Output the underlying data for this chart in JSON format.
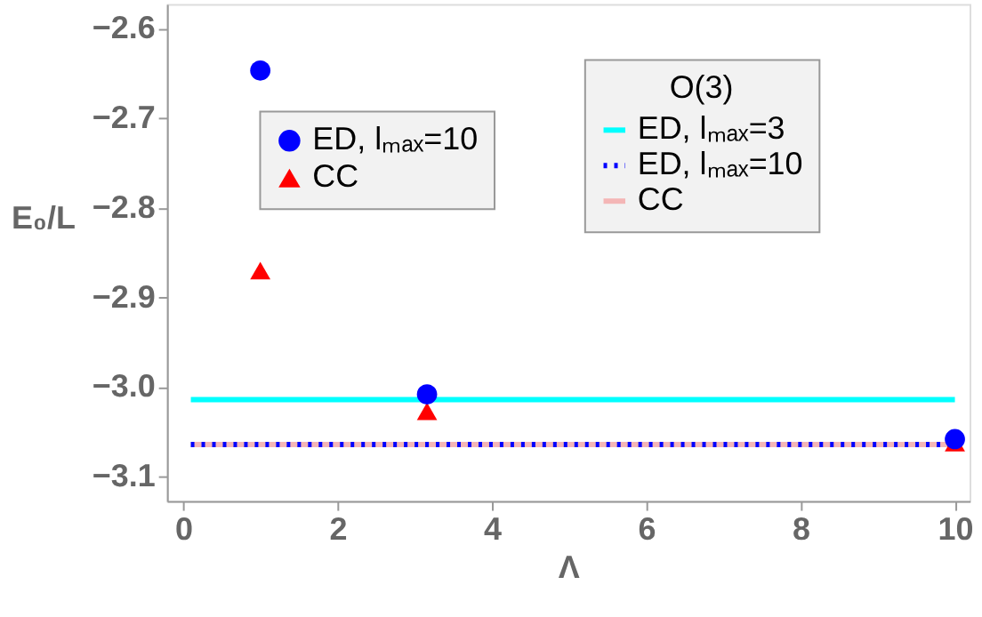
{
  "chart_data": {
    "type": "scatter",
    "xlabel": "Λ",
    "ylabel": "E₀/L",
    "xlim": [
      -0.21,
      10.19
    ],
    "ylim": [
      -3.127,
      -2.573
    ],
    "xticks": [
      0,
      2,
      4,
      6,
      8,
      10
    ],
    "yticks": [
      -3.1,
      {
        "value": -3.0,
        "label": "−3.0"
      },
      -2.9,
      -2.8,
      -2.7,
      -2.6
    ],
    "grid": false,
    "legend": "top right",
    "legend_title": "O(3)",
    "series": [
      {
        "name": "ED, lₘₐₓ=3",
        "type": "line",
        "color": "#00ffff",
        "line_style": "solid",
        "x": [
          0.1,
          10
        ],
        "values": [
          -3.014,
          -3.014
        ]
      },
      {
        "name": "ED, lₘₐₓ=10",
        "type": "line",
        "color": "#0000ff",
        "line_style": "dotted",
        "x": [
          0.1,
          10
        ],
        "values": [
          -3.064,
          -3.064
        ]
      },
      {
        "name": "CC",
        "type": "line",
        "color": "#f4b6b6",
        "line_style": "solid",
        "x": [
          0.1,
          10
        ],
        "values": [
          -3.064,
          -3.064
        ]
      },
      {
        "name": "ED, lₘₐₓ=10",
        "marker": "circle",
        "color": "#0000ff",
        "x": [
          1,
          3.16,
          10
        ],
        "values": [
          -2.647,
          -3.008,
          -3.058
        ]
      },
      {
        "name": "CC",
        "marker": "triangle",
        "color": "#ff0000",
        "x": [
          1,
          3.16,
          10
        ],
        "values": [
          -2.87,
          -3.027,
          -3.062
        ]
      }
    ]
  }
}
